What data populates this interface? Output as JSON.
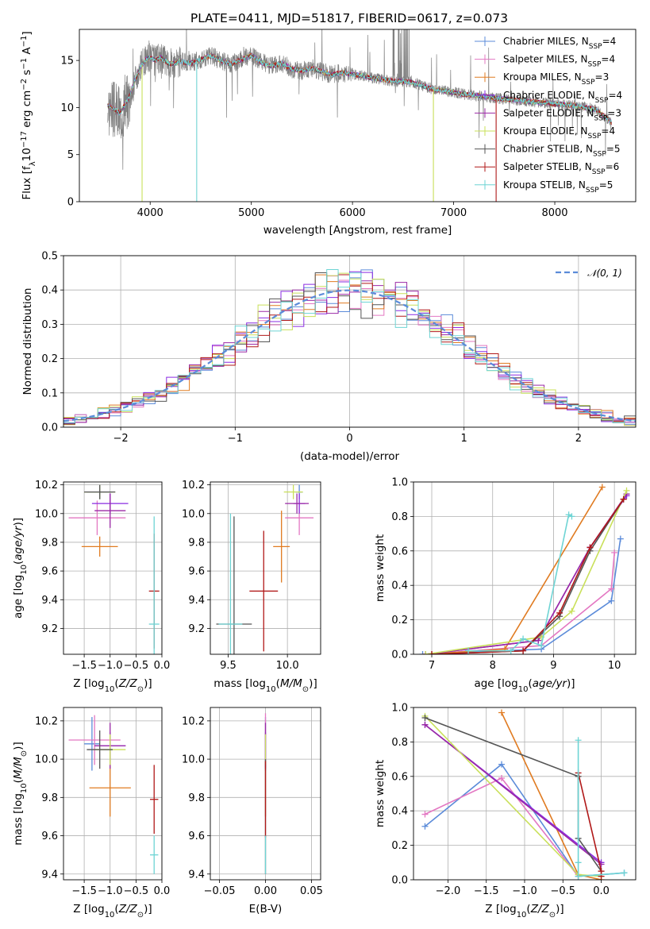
{
  "figure": {
    "title": "PLATE=0411, MJD=51817, FIBERID=0617, z=0.073"
  },
  "colors": {
    "Chabrier MILES": "#5b8bd9",
    "Salpeter MILES": "#e377c2",
    "Kroupa MILES": "#e07b21",
    "Chabrier ELODIE": "#8a2be2",
    "Salpeter ELODIE": "#9b2aa6",
    "Kroupa ELODIE": "#c9e05a",
    "Chabrier STELIB": "#555555",
    "Salpeter STELIB": "#b01818",
    "Kroupa STELIB": "#6ed4d4",
    "data": "#808080",
    "grid": "#b0b0b0"
  },
  "legend_entries": [
    {
      "base": "Chabrier MILES, N",
      "sub": "SSP",
      "tail": "=4"
    },
    {
      "base": "Salpeter MILES, N",
      "sub": "SSP",
      "tail": "=4"
    },
    {
      "base": "Kroupa MILES, N",
      "sub": "SSP",
      "tail": "=3"
    },
    {
      "base": "Chabrier ELODIE, N",
      "sub": "SSP",
      "tail": "=4"
    },
    {
      "base": "Salpeter ELODIE, N",
      "sub": "SSP",
      "tail": "=3"
    },
    {
      "base": "Kroupa ELODIE, N",
      "sub": "SSP",
      "tail": "=4"
    },
    {
      "base": "Chabrier STELIB, N",
      "sub": "SSP",
      "tail": "=5"
    },
    {
      "base": "Salpeter STELIB, N",
      "sub": "SSP",
      "tail": "=6"
    },
    {
      "base": "Kroupa STELIB, N",
      "sub": "SSP",
      "tail": "=5"
    }
  ],
  "chart_data": [
    {
      "id": "spectrum",
      "type": "line",
      "xlabel": "wavelength [Angstrom, rest frame]",
      "ylabel": "Flux [fλ10⁻¹⁷ erg cm⁻² s⁻¹ A⁻¹]",
      "xlim": [
        3300,
        8800
      ],
      "ylim": [
        0,
        18.3
      ],
      "xticks": [
        4000,
        5000,
        6000,
        7000,
        8000
      ],
      "yticks": [
        0,
        5,
        10,
        15
      ],
      "grid": false,
      "legend_placement": "right",
      "continuum_x": [
        3580,
        3620,
        3700,
        3750,
        3800,
        3850,
        3900,
        3950,
        4000,
        4050,
        4100,
        4200,
        4300,
        4400,
        4500,
        4600,
        4700,
        4800,
        4900,
        5000,
        5100,
        5200,
        5300,
        5400,
        5500,
        5600,
        5700,
        5800,
        5900,
        6000,
        6100,
        6200,
        6300,
        6400,
        6500,
        6600,
        6700,
        6800,
        6900,
        7000,
        7100,
        7200,
        7300,
        7400,
        7500,
        7600,
        7700,
        7800,
        7900,
        8000,
        8100,
        8200,
        8300,
        8400,
        8500,
        8560
      ],
      "continuum_y": [
        10.2,
        10.0,
        9.4,
        10.3,
        11.3,
        12.9,
        14.2,
        15.0,
        15.3,
        15.0,
        15.3,
        14.6,
        14.9,
        14.7,
        15.1,
        15.5,
        15.0,
        14.6,
        15.1,
        15.5,
        14.8,
        14.4,
        14.7,
        14.1,
        13.9,
        14.2,
        13.8,
        13.5,
        13.7,
        13.5,
        13.4,
        13.1,
        13.0,
        12.8,
        12.8,
        12.6,
        12.3,
        11.9,
        11.8,
        11.6,
        11.4,
        11.3,
        11.2,
        11.0,
        10.9,
        10.8,
        10.7,
        10.6,
        10.5,
        10.4,
        10.3,
        10.2,
        10.0,
        9.8,
        9.0,
        8.4
      ],
      "model_drops": [
        {
          "model": "Kroupa ELODIE",
          "x": 3920,
          "y_min": 0
        },
        {
          "model": "Kroupa STELIB",
          "x": 4460,
          "y_min": 0
        },
        {
          "model": "Kroupa ELODIE",
          "x": 6800,
          "y_min": 0
        },
        {
          "model": "Salpeter STELIB",
          "x": 7420,
          "y_min": 0
        }
      ]
    },
    {
      "id": "residual_distribution",
      "type": "line",
      "xlabel": "(data-model)/error",
      "ylabel": "Normed distribution",
      "xlim": [
        -2.5,
        2.5
      ],
      "ylim": [
        0,
        0.5
      ],
      "xticks": [
        -2,
        -1,
        0,
        1,
        2
      ],
      "yticks": [
        0.0,
        0.1,
        0.2,
        0.3,
        0.4,
        0.5
      ],
      "grid": true,
      "legend_placement": "top-right",
      "legend_label": "𝒩(0, 1)",
      "gaussian": {
        "mean": 0,
        "sigma": 1
      },
      "bin_width": 0.1,
      "histograms": [
        {
          "model": "Chabrier MILES",
          "seed": 1
        },
        {
          "model": "Salpeter MILES",
          "seed": 2
        },
        {
          "model": "Kroupa MILES",
          "seed": 3
        },
        {
          "model": "Chabrier ELODIE",
          "seed": 4
        },
        {
          "model": "Salpeter ELODIE",
          "seed": 5
        },
        {
          "model": "Kroupa ELODIE",
          "seed": 6
        },
        {
          "model": "Chabrier STELIB",
          "seed": 7
        },
        {
          "model": "Salpeter STELIB",
          "seed": 8
        },
        {
          "model": "Kroupa STELIB",
          "seed": 9
        }
      ]
    },
    {
      "id": "age_vs_Z",
      "type": "scatter",
      "xlabel": "Z [log10(Z/Z⊙)]",
      "ylabel": "age [log10(age/yr)]",
      "xlim": [
        -1.9,
        0.0
      ],
      "ylim": [
        9.02,
        10.22
      ],
      "xticks": [
        -1.5,
        -1.0,
        -0.5,
        0.0
      ],
      "xticklabels": [
        "−1.5",
        "−1.0",
        "−0.5",
        "0.0"
      ],
      "yticks": [
        9.2,
        9.4,
        9.6,
        9.8,
        10.0,
        10.2
      ],
      "grid": true,
      "points": [
        {
          "model": "Chabrier MILES",
          "x": -1.2,
          "xerr": 0.25,
          "y": 10.15,
          "yerr": 0.05
        },
        {
          "model": "Salpeter MILES",
          "x": -1.25,
          "xerr": 0.55,
          "y": 9.97,
          "yerr": 0.12
        },
        {
          "model": "Kroupa MILES",
          "x": -1.2,
          "xerr": 0.35,
          "y": 9.77,
          "yerr": 0.07
        },
        {
          "model": "Chabrier ELODIE",
          "x": -1.0,
          "xerr": 0.35,
          "y": 10.07,
          "yerr": 0.07
        },
        {
          "model": "Salpeter ELODIE",
          "x": -1.0,
          "xerr": 0.3,
          "y": 10.02,
          "yerr": 0.12
        },
        {
          "model": "Kroupa ELODIE",
          "x": -1.2,
          "xerr": 0.3,
          "y": 10.15,
          "yerr": 0.05
        },
        {
          "model": "Chabrier STELIB",
          "x": -1.2,
          "xerr": 0.3,
          "y": 10.15,
          "yerr": 0.05
        },
        {
          "model": "Salpeter STELIB",
          "x": -0.15,
          "xerr": 0.1,
          "y": 9.46,
          "yerr": 0.4
        },
        {
          "model": "Kroupa STELIB",
          "x": -0.15,
          "xerr": 0.1,
          "y": 9.23,
          "yerr": 0.75
        }
      ]
    },
    {
      "id": "age_vs_mass",
      "type": "scatter",
      "xlabel": "mass [log10(M/M⊙)]",
      "ylabel": "",
      "xlim": [
        9.35,
        10.28
      ],
      "ylim": [
        9.02,
        10.22
      ],
      "xticks": [
        9.5,
        10.0
      ],
      "xticklabels": [
        "9.5",
        "10.0"
      ],
      "yticks": [
        9.2,
        9.4,
        9.6,
        9.8,
        10.0,
        10.2
      ],
      "grid": true,
      "points": [
        {
          "model": "Chabrier MILES",
          "x": 10.1,
          "xerr": 0.03,
          "y": 10.15,
          "yerr": 0.05
        },
        {
          "model": "Salpeter MILES",
          "x": 10.1,
          "xerr": 0.12,
          "y": 9.97,
          "yerr": 0.12
        },
        {
          "model": "Kroupa MILES",
          "x": 9.95,
          "xerr": 0.07,
          "y": 9.77,
          "yerr": 0.25
        },
        {
          "model": "Chabrier ELODIE",
          "x": 10.1,
          "xerr": 0.05,
          "y": 10.07,
          "yerr": 0.07
        },
        {
          "model": "Salpeter ELODIE",
          "x": 10.08,
          "xerr": 0.1,
          "y": 10.07,
          "yerr": 0.07
        },
        {
          "model": "Kroupa ELODIE",
          "x": 10.05,
          "xerr": 0.08,
          "y": 10.15,
          "yerr": 0.05
        },
        {
          "model": "Chabrier STELIB",
          "x": 9.55,
          "xerr": 0.15,
          "y": 9.23,
          "yerr": 0.75
        },
        {
          "model": "Salpeter STELIB",
          "x": 9.8,
          "xerr": 0.12,
          "y": 9.46,
          "yerr": 0.42
        },
        {
          "model": "Kroupa STELIB",
          "x": 9.52,
          "xerr": 0.1,
          "y": 9.23,
          "yerr": 0.77
        }
      ]
    },
    {
      "id": "mass_weight_vs_age",
      "type": "line",
      "xlabel": "age [log10(age/yr)]",
      "ylabel": "mass weight",
      "xlim": [
        6.7,
        10.35
      ],
      "ylim": [
        0,
        1.0
      ],
      "xticks": [
        7,
        8,
        9,
        10
      ],
      "yticks": [
        0.0,
        0.2,
        0.4,
        0.6,
        0.8,
        1.0
      ],
      "grid": true,
      "series": [
        {
          "model": "Chabrier MILES",
          "x": [
            6.85,
            8.8,
            9.95,
            10.1
          ],
          "y": [
            0.0,
            0.03,
            0.31,
            0.67
          ]
        },
        {
          "model": "Salpeter MILES",
          "x": [
            6.9,
            8.8,
            9.95,
            10.0
          ],
          "y": [
            0.0,
            0.05,
            0.38,
            0.59
          ]
        },
        {
          "model": "Kroupa MILES",
          "x": [
            6.9,
            8.2,
            9.8
          ],
          "y": [
            0.0,
            0.03,
            0.97
          ]
        },
        {
          "model": "Chabrier ELODIE",
          "x": [
            6.9,
            8.75,
            9.6,
            10.2
          ],
          "y": [
            0.0,
            0.08,
            0.62,
            0.92
          ]
        },
        {
          "model": "Salpeter ELODIE",
          "x": [
            6.9,
            8.75,
            9.6,
            10.2
          ],
          "y": [
            0.0,
            0.08,
            0.62,
            0.93
          ]
        },
        {
          "model": "Kroupa ELODIE",
          "x": [
            6.9,
            8.8,
            9.3,
            10.2
          ],
          "y": [
            0.0,
            0.1,
            0.25,
            0.95
          ]
        },
        {
          "model": "Chabrier STELIB",
          "x": [
            7.0,
            8.5,
            9.1,
            9.6,
            10.15
          ],
          "y": [
            0.0,
            0.02,
            0.22,
            0.6,
            0.9
          ]
        },
        {
          "model": "Salpeter STELIB",
          "x": [
            7.0,
            8.5,
            9.1,
            9.6,
            10.15
          ],
          "y": [
            0.0,
            0.02,
            0.24,
            0.62,
            0.9
          ]
        },
        {
          "model": "Kroupa STELIB",
          "x": [
            7.6,
            8.3,
            8.5,
            8.8,
            9.25,
            9.3
          ],
          "y": [
            0.02,
            0.02,
            0.09,
            0.05,
            0.81,
            0.8
          ]
        }
      ]
    },
    {
      "id": "mass_vs_Z",
      "type": "scatter",
      "xlabel": "Z [log10(Z/Z⊙)]",
      "ylabel": "mass [log10(M/M⊙)]",
      "xlim": [
        -1.9,
        0.0
      ],
      "ylim": [
        9.37,
        10.27
      ],
      "xticks": [
        -1.5,
        -1.0,
        -0.5,
        0.0
      ],
      "xticklabels": [
        "−1.5",
        "−1.0",
        "−0.5",
        "0.0"
      ],
      "yticks": [
        9.4,
        9.6,
        9.8,
        10.0,
        10.2
      ],
      "grid": true,
      "points": [
        {
          "model": "Chabrier MILES",
          "x": -1.35,
          "xerr": 0.15,
          "y": 10.08,
          "yerr": 0.14
        },
        {
          "model": "Salpeter MILES",
          "x": -1.3,
          "xerr": 0.5,
          "y": 10.1,
          "yerr": 0.13
        },
        {
          "model": "Kroupa MILES",
          "x": -1.0,
          "xerr": 0.4,
          "y": 9.85,
          "yerr": 0.15
        },
        {
          "model": "Chabrier ELODIE",
          "x": -1.0,
          "xerr": 0.3,
          "y": 10.07,
          "yerr": 0.07
        },
        {
          "model": "Salpeter ELODIE",
          "x": -1.0,
          "xerr": 0.3,
          "y": 10.07,
          "yerr": 0.12
        },
        {
          "model": "Kroupa ELODIE",
          "x": -1.0,
          "xerr": 0.3,
          "y": 10.05,
          "yerr": 0.08
        },
        {
          "model": "Chabrier STELIB",
          "x": -1.2,
          "xerr": 0.25,
          "y": 10.05,
          "yerr": 0.1
        },
        {
          "model": "Salpeter STELIB",
          "x": -0.15,
          "xerr": 0.08,
          "y": 9.79,
          "yerr": 0.18
        },
        {
          "model": "Kroupa STELIB",
          "x": -0.15,
          "xerr": 0.08,
          "y": 9.5,
          "yerr": 0.1
        }
      ]
    },
    {
      "id": "mass_vs_EBV",
      "type": "scatter",
      "xlabel": "E(B-V)",
      "ylabel": "",
      "xlim": [
        -0.06,
        0.06
      ],
      "ylim": [
        9.37,
        10.27
      ],
      "xticks": [
        -0.05,
        0.0,
        0.05
      ],
      "xticklabels": [
        "−0.05",
        "0.00",
        "0.05"
      ],
      "yticks": [
        9.4,
        9.6,
        9.8,
        10.0,
        10.2
      ],
      "grid": true,
      "points": [
        {
          "model": "Chabrier MILES",
          "x": 0,
          "xerr": 0,
          "y": 10.08,
          "yerr": 0.14
        },
        {
          "model": "Salpeter MILES",
          "x": 0,
          "xerr": 0,
          "y": 10.1,
          "yerr": 0.14
        },
        {
          "model": "Kroupa MILES",
          "x": 0,
          "xerr": 0,
          "y": 9.85,
          "yerr": 0.15
        },
        {
          "model": "Chabrier ELODIE",
          "x": 0,
          "xerr": 0,
          "y": 10.07,
          "yerr": 0.07
        },
        {
          "model": "Salpeter ELODIE",
          "x": 0,
          "xerr": 0,
          "y": 10.07,
          "yerr": 0.12
        },
        {
          "model": "Kroupa ELODIE",
          "x": 0,
          "xerr": 0,
          "y": 10.05,
          "yerr": 0.08
        },
        {
          "model": "Chabrier STELIB",
          "x": 0,
          "xerr": 0,
          "y": 9.7,
          "yerr": 0.3
        },
        {
          "model": "Salpeter STELIB",
          "x": 0,
          "xerr": 0,
          "y": 9.79,
          "yerr": 0.2
        },
        {
          "model": "Kroupa STELIB",
          "x": 0,
          "xerr": 0,
          "y": 9.5,
          "yerr": 0.1
        }
      ]
    },
    {
      "id": "mass_weight_vs_Z",
      "type": "line",
      "xlabel": "Z [log10(Z/Z⊙)]",
      "ylabel": "mass weight",
      "xlim": [
        -2.45,
        0.45
      ],
      "ylim": [
        0,
        1.0
      ],
      "xticks": [
        -2.0,
        -1.5,
        -1.0,
        -0.5,
        0.0
      ],
      "xticklabels": [
        "−2.0",
        "−1.5",
        "−1.0",
        "−0.5",
        "0.0"
      ],
      "yticks": [
        0.0,
        0.2,
        0.4,
        0.6,
        0.8,
        1.0
      ],
      "grid": true,
      "series": [
        {
          "model": "Chabrier MILES",
          "x": [
            -2.3,
            -1.3,
            -0.3,
            0.3
          ],
          "y": [
            0.31,
            0.67,
            0.02,
            0.04
          ]
        },
        {
          "model": "Salpeter MILES",
          "x": [
            -2.3,
            -1.3,
            -0.3
          ],
          "y": [
            0.38,
            0.59,
            0.02
          ]
        },
        {
          "model": "Kroupa MILES",
          "x": [
            -1.3,
            -0.3,
            0.0
          ],
          "y": [
            0.97,
            0.03,
            0.0
          ]
        },
        {
          "model": "Chabrier ELODIE",
          "x": [
            -2.3,
            0.0
          ],
          "y": [
            0.9,
            0.1
          ]
        },
        {
          "model": "Salpeter ELODIE",
          "x": [
            -2.3,
            0.0
          ],
          "y": [
            0.9,
            0.09
          ]
        },
        {
          "model": "Kroupa ELODIE",
          "x": [
            -2.3,
            -0.3,
            0.0
          ],
          "y": [
            0.95,
            0.03,
            0.02
          ]
        },
        {
          "model": "Chabrier STELIB",
          "x": [
            -2.3,
            -0.3,
            -0.3,
            0.0
          ],
          "y": [
            0.94,
            0.6,
            0.24,
            0.05
          ]
        },
        {
          "model": "Salpeter STELIB",
          "x": [
            -0.3,
            0.0,
            0.0
          ],
          "y": [
            0.62,
            0.05,
            0.02
          ]
        },
        {
          "model": "Kroupa STELIB",
          "x": [
            -0.3,
            -0.3,
            -0.3,
            0.3
          ],
          "y": [
            0.81,
            0.1,
            0.02,
            0.04
          ]
        }
      ]
    }
  ]
}
